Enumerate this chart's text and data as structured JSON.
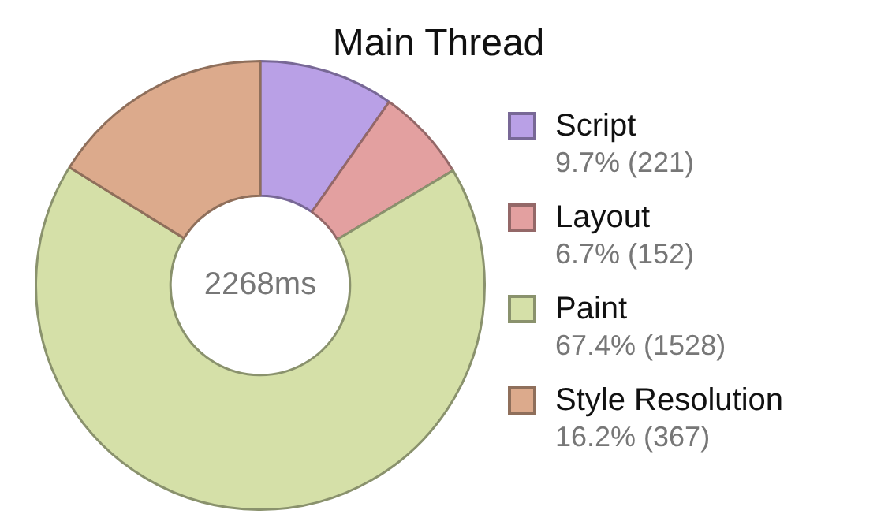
{
  "chart_data": {
    "type": "donut",
    "title": "Main Thread",
    "categories": [
      "Script",
      "Layout",
      "Paint",
      "Style Resolution"
    ],
    "values": [
      221,
      152,
      1528,
      367
    ],
    "colors": [
      "#b9a0e6",
      "#e3a0a0",
      "#d5e0a8",
      "#dcaa8c"
    ],
    "value_labels": [
      "9.7% (221)",
      "6.7% (152)",
      "67.4% (1528)",
      "16.2% (367)"
    ],
    "legend": "right",
    "annotations": [
      "2268ms"
    ]
  }
}
